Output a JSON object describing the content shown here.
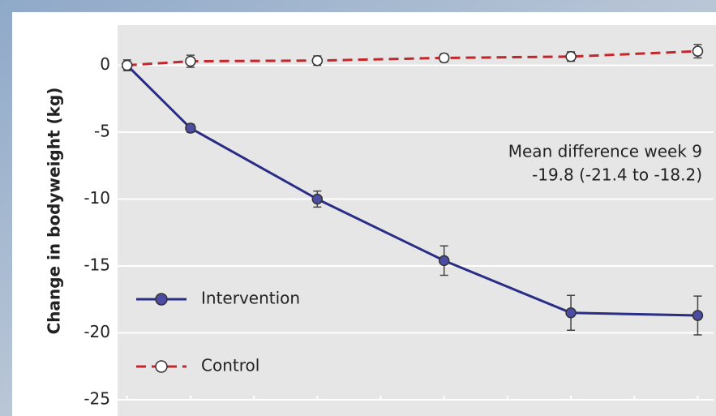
{
  "chart_data": {
    "type": "line",
    "ylabel": "Change in bodyweight (kg)",
    "x": [
      0,
      1,
      3,
      5,
      7,
      9
    ],
    "xlim": [
      -0.15,
      9.25
    ],
    "xticks": [
      0,
      1,
      2,
      3,
      4,
      5,
      6,
      7,
      8,
      9
    ],
    "ylim": [
      -25,
      3
    ],
    "yticks": [
      0,
      -5,
      -10,
      -15,
      -20,
      -25
    ],
    "grid": true,
    "legend": "lower left",
    "annotation": [
      "Mean difference week 9",
      "-19.8 (-21.4 to -18.2)"
    ],
    "series": [
      {
        "name": "Intervention",
        "color": "#2a2d85",
        "marker_fill": "#4b4ca3",
        "dashed": false,
        "values": [
          0,
          -4.7,
          -10,
          -14.6,
          -18.5,
          -18.7
        ],
        "errors": [
          0.4,
          0.3,
          0.6,
          1.1,
          1.3,
          1.45
        ]
      },
      {
        "name": "Control",
        "color": "#c1272d",
        "marker_fill": "#ffffff",
        "dashed": true,
        "values": [
          0,
          0.3,
          0.35,
          0.55,
          0.65,
          1.05
        ],
        "errors": [
          0.2,
          0.45,
          0.35,
          0.3,
          0.35,
          0.5
        ]
      }
    ]
  }
}
